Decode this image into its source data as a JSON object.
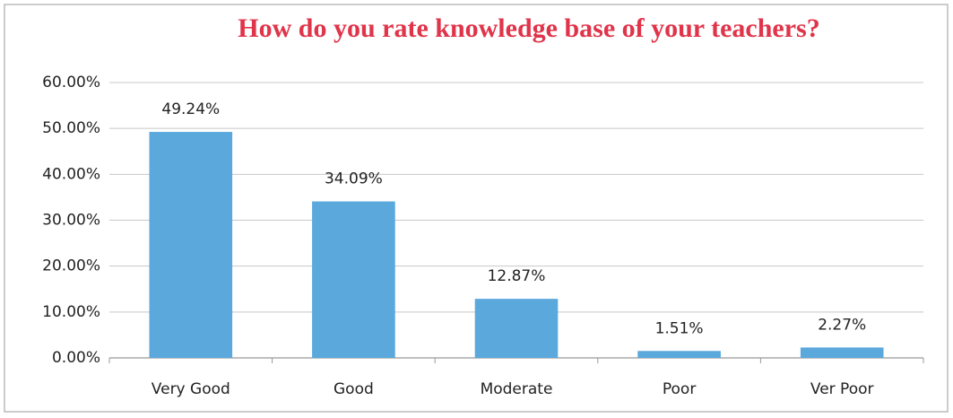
{
  "chart_data": {
    "type": "bar",
    "title": "How do you rate knowledge base of your teachers?",
    "categories": [
      "Very Good",
      "Good",
      "Moderate",
      "Poor",
      "Ver Poor"
    ],
    "values": [
      49.24,
      34.09,
      12.87,
      1.51,
      2.27
    ],
    "value_labels": [
      "49.24%",
      "34.09%",
      "12.87%",
      "1.51%",
      "2.27%"
    ],
    "color": "#5aa8dc",
    "ylim": [
      0,
      60
    ],
    "yticks": [
      {
        "value": 0,
        "label": "0.00%"
      },
      {
        "value": 10,
        "label": "10.00%"
      },
      {
        "value": 20,
        "label": "20.00%"
      },
      {
        "value": 30,
        "label": "30.00%"
      },
      {
        "value": 40,
        "label": "40.00%"
      },
      {
        "value": 50,
        "label": "50.00%"
      },
      {
        "value": 60,
        "label": "60.00%"
      }
    ],
    "grid": true
  }
}
